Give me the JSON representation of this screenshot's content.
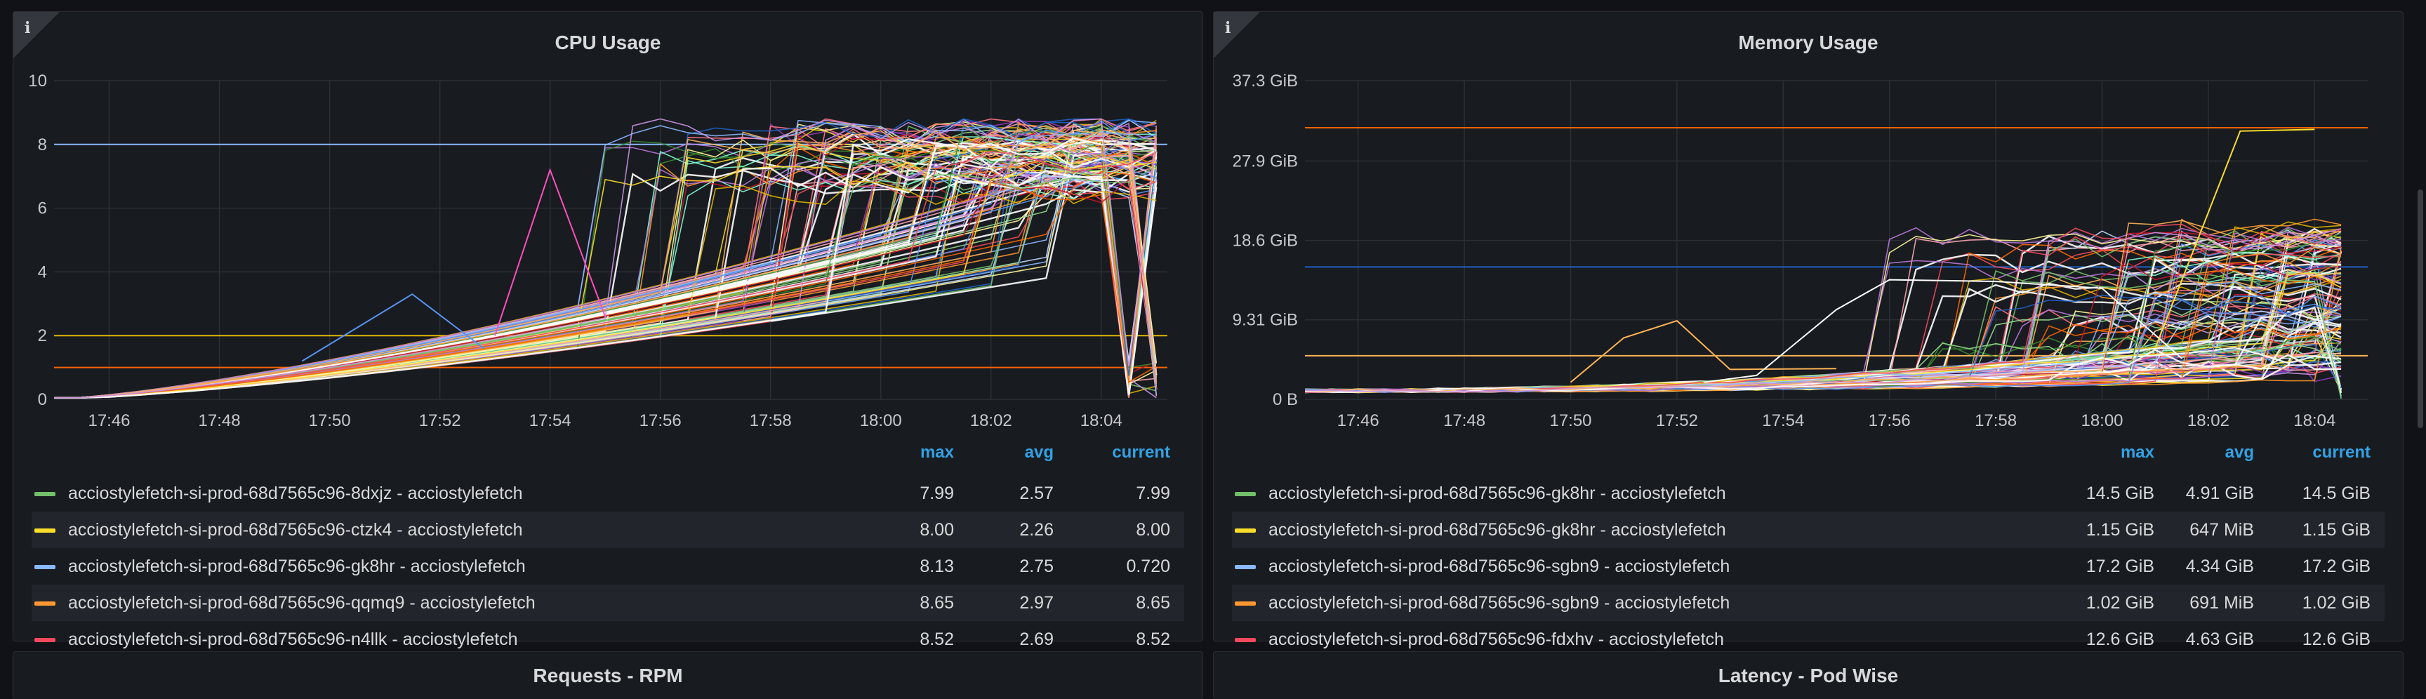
{
  "colors": {
    "background": "#111217",
    "panel": "#181b1f",
    "header_blue": "#33a2e5",
    "series_palette": [
      "#73bf69",
      "#fade2a",
      "#8ab8ff",
      "#ff9830",
      "#f2495c",
      "#5794f2",
      "#b877d9",
      "#96d98d",
      "#ffb357",
      "#ca95e5",
      "#ff7383",
      "#8f3bb8",
      "#fff899",
      "#c0d8ff",
      "#ffffff",
      "#e0b400",
      "#37872d",
      "#1f60c4",
      "#fa6400",
      "#c4162a",
      "#80ffd4",
      "#ffa6b0"
    ]
  },
  "panels": [
    {
      "title": "CPU Usage",
      "info_icon": "info-icon",
      "legend_headers": {
        "max": "max",
        "avg": "avg",
        "current": "current"
      },
      "legend": [
        {
          "name": "acciostylefetch-si-prod-68d7565c96-8dxjz - acciostylefetch",
          "color": "#73bf69",
          "max": "7.99",
          "avg": "2.57",
          "current": "7.99"
        },
        {
          "name": "acciostylefetch-si-prod-68d7565c96-ctzk4 - acciostylefetch",
          "color": "#fade2a",
          "max": "8.00",
          "avg": "2.26",
          "current": "8.00"
        },
        {
          "name": "acciostylefetch-si-prod-68d7565c96-gk8hr - acciostylefetch",
          "color": "#8ab8ff",
          "max": "8.13",
          "avg": "2.75",
          "current": "0.720"
        },
        {
          "name": "acciostylefetch-si-prod-68d7565c96-qqmq9 - acciostylefetch",
          "color": "#ff9830",
          "max": "8.65",
          "avg": "2.97",
          "current": "8.65"
        },
        {
          "name": "acciostylefetch-si-prod-68d7565c96-n4llk - acciostylefetch",
          "color": "#f2495c",
          "max": "8.52",
          "avg": "2.69",
          "current": "8.52"
        }
      ],
      "chart_data": {
        "type": "line",
        "title": "CPU Usage",
        "x_ticks": [
          "17:46",
          "17:48",
          "17:50",
          "17:52",
          "17:54",
          "17:56",
          "17:58",
          "18:00",
          "18:02",
          "18:04"
        ],
        "x_tick_positions_min": [
          1,
          3,
          5,
          7,
          9,
          11,
          13,
          15,
          17,
          19
        ],
        "xlim_min": [
          0,
          20.2
        ],
        "y_ticks": [
          "0",
          "2",
          "4",
          "6",
          "8",
          "10"
        ],
        "y_tick_values": [
          0,
          2,
          4,
          6,
          8,
          10
        ],
        "ylim": [
          0,
          10
        ],
        "series_count_approx": 120,
        "ramp": {
          "start_min": 0,
          "ramp_end_min": 17,
          "ramp_end_level": [
            3.5,
            6.5
          ],
          "final_level": [
            6.5,
            8.6
          ],
          "jump_window_min": [
            9,
            18.5
          ]
        },
        "constant_series": [
          {
            "value": 8,
            "color": "#8ab8ff"
          },
          {
            "value": 2,
            "color": "#e0b400"
          },
          {
            "value": 1,
            "color": "#fa6400"
          }
        ],
        "spikes": [
          {
            "color": "#5794f2",
            "points": [
              [
                4.5,
                1.2
              ],
              [
                6.5,
                3.3
              ],
              [
                7.8,
                1.6
              ]
            ]
          },
          {
            "color": "#ff4fc1",
            "points": [
              [
                8.0,
                2.0
              ],
              [
                9.0,
                7.2
              ],
              [
                10.0,
                2.6
              ]
            ]
          }
        ]
      }
    },
    {
      "title": "Memory Usage",
      "info_icon": "info-icon",
      "legend_headers": {
        "max": "max",
        "avg": "avg",
        "current": "current"
      },
      "legend": [
        {
          "name": "acciostylefetch-si-prod-68d7565c96-gk8hr - acciostylefetch",
          "color": "#73bf69",
          "max": "14.5 GiB",
          "avg": "4.91 GiB",
          "current": "14.5 GiB"
        },
        {
          "name": "acciostylefetch-si-prod-68d7565c96-gk8hr - acciostylefetch",
          "color": "#fade2a",
          "max": "1.15 GiB",
          "avg": "647 MiB",
          "current": "1.15 GiB"
        },
        {
          "name": "acciostylefetch-si-prod-68d7565c96-sgbn9 - acciostylefetch",
          "color": "#8ab8ff",
          "max": "17.2 GiB",
          "avg": "4.34 GiB",
          "current": "17.2 GiB"
        },
        {
          "name": "acciostylefetch-si-prod-68d7565c96-sgbn9 - acciostylefetch",
          "color": "#ff9830",
          "max": "1.02 GiB",
          "avg": "691 MiB",
          "current": "1.02 GiB"
        },
        {
          "name": "acciostylefetch-si-prod-68d7565c96-fdxhv - acciostylefetch",
          "color": "#f2495c",
          "max": "12.6 GiB",
          "avg": "4.63 GiB",
          "current": "12.6 GiB"
        }
      ],
      "chart_data": {
        "type": "line",
        "title": "Memory Usage",
        "x_ticks": [
          "17:46",
          "17:48",
          "17:50",
          "17:52",
          "17:54",
          "17:56",
          "17:58",
          "18:00",
          "18:02",
          "18:04"
        ],
        "x_tick_positions_min": [
          1,
          3,
          5,
          7,
          9,
          11,
          13,
          15,
          17,
          19
        ],
        "xlim_min": [
          0,
          20
        ],
        "y_ticks": [
          "0 B",
          "9.31 GiB",
          "18.6 GiB",
          "27.9 GiB",
          "37.3 GiB"
        ],
        "y_tick_values": [
          0,
          9.31,
          18.6,
          27.9,
          37.3
        ],
        "ylim": [
          0,
          37.3
        ],
        "series_count_approx": 120,
        "ramp": {
          "start_min": 0,
          "ramp_end_min": 17,
          "ramp_end_level": [
            1,
            6
          ],
          "final_level": [
            3,
            20
          ],
          "jump_window_min": [
            10,
            19.5
          ]
        },
        "constant_series": [
          {
            "value": 31.8,
            "color": "#fa6400"
          },
          {
            "value": 15.5,
            "color": "#1f60c4"
          },
          {
            "value": 5.1,
            "color": "#ffb357"
          }
        ],
        "spikes": [
          {
            "color": "#ffb357",
            "points": [
              [
                5,
                2.0
              ],
              [
                6.0,
                7.2
              ],
              [
                7.0,
                9.2
              ],
              [
                8.0,
                3.5
              ],
              [
                10,
                3.6
              ]
            ]
          },
          {
            "color": "#ffffff",
            "points": [
              [
                7.5,
                2.0
              ],
              [
                8.5,
                2.8
              ],
              [
                10,
                10.5
              ],
              [
                11.0,
                14.0
              ],
              [
                13,
                13.8
              ],
              [
                15,
                13.0
              ],
              [
                16.5,
                4.8
              ]
            ]
          },
          {
            "color": "#fade2a",
            "points": [
              [
                16,
                6
              ],
              [
                17.6,
                31.4
              ],
              [
                19,
                31.6
              ]
            ]
          }
        ]
      }
    }
  ],
  "collapsed_panels": [
    {
      "title": "Requests - RPM"
    },
    {
      "title": "Latency - Pod Wise"
    }
  ]
}
